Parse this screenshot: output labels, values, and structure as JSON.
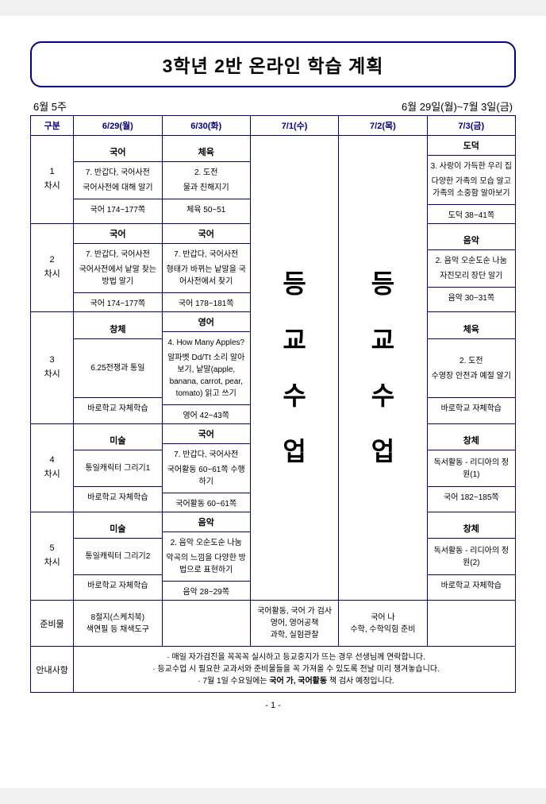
{
  "title": "3학년 2반 온라인 학습 계획",
  "week_label": "6월 5주",
  "date_range": "6월 29일(월)~7월 3일(금)",
  "header": {
    "col_label": "구분",
    "days": [
      "6/29(월)",
      "6/30(화)",
      "7/1(수)",
      "7/2(목)",
      "7/3(금)"
    ]
  },
  "vertical_text": "등교수업",
  "periods": [
    {
      "label_num": "1",
      "label_txt": "차시",
      "mon": {
        "subj": "국어",
        "t1": "7. 반갑다, 국어사전",
        "t2": "국어사전에 대해 알기",
        "pg": "국어 174~177쪽"
      },
      "tue": {
        "subj": "체육",
        "t1": "2. 도전",
        "t2": "물과 친해지기",
        "pg": "체육 50~51"
      },
      "fri": {
        "subj": "도덕",
        "t1": "3. 사랑이 가득한 우리 집",
        "t2": "다양한 가족의 모습 알고 가족의 소중함 알아보기",
        "pg": "도덕 38~41쪽"
      }
    },
    {
      "label_num": "2",
      "label_txt": "차시",
      "mon": {
        "subj": "국어",
        "t1": "7. 반갑다, 국어사전",
        "t2": "국어사전에서 낱말 찾는 방법 알기",
        "pg": "국어 174~177쪽"
      },
      "tue": {
        "subj": "국어",
        "t1": "7. 반갑다, 국어사전",
        "t2": "형태가 바뀌는 낱말을 국어사전에서 찾기",
        "pg": "국어 178~181쪽"
      },
      "fri": {
        "subj": "음악",
        "t1": "2. 음악 오순도순 나눔",
        "t2": "자진모리 장단 알기",
        "pg": "음악 30~31쪽"
      }
    },
    {
      "label_num": "3",
      "label_txt": "차시",
      "mon": {
        "subj": "창체",
        "t1": "",
        "t2": "6.25전쟁과 통일",
        "pg": "바로학교 자체학습"
      },
      "tue": {
        "subj": "영어",
        "t1": "4. How Many Apples?",
        "t2": "알파벳 Dd/Tt 소리 알아보기, 낱말(apple, banana, carrot, pear, tomato) 읽고 쓰기",
        "pg": "영어 42~43쪽"
      },
      "fri": {
        "subj": "체육",
        "t1": "2. 도전",
        "t2": "수영장 안전과 예절 알기",
        "pg": "바로학교 자체학습"
      }
    },
    {
      "label_num": "4",
      "label_txt": "차시",
      "mon": {
        "subj": "미술",
        "t1": "",
        "t2": "통일캐릭터 그리기1",
        "pg": "바로학교 자체학습"
      },
      "tue": {
        "subj": "국어",
        "t1": "7. 반갑다, 국어사전",
        "t2": "국어활동 60~61쪽 수행하기",
        "pg": "국어활동 60~61쪽"
      },
      "fri": {
        "subj": "창체",
        "t1": "",
        "t2": "독서활동 - 리디아의 정원(1)",
        "pg": "국어 182~185쪽"
      }
    },
    {
      "label_num": "5",
      "label_txt": "차시",
      "mon": {
        "subj": "미술",
        "t1": "",
        "t2": "통일캐릭터 그리기2",
        "pg": "바로학교 자체학습"
      },
      "tue": {
        "subj": "음악",
        "t1": "2. 음악 오순도순 나눔",
        "t2": "악곡의 느낌을 다양한 방법으로 표현하기",
        "pg": "음악 28~29쪽"
      },
      "fri": {
        "subj": "창체",
        "t1": "",
        "t2": "독서활동 - 리디아의 정원(2)",
        "pg": "바로학교 자체학습"
      }
    }
  ],
  "prep": {
    "label": "준비물",
    "mon": "8절지(스케치북)\n색연필 등 채색도구",
    "wed": "국어활동, 국어 가 검사\n영어, 영어공책\n과학, 실험관찰",
    "thu": "국어 나\n수학, 수학익힘 준비"
  },
  "notice": {
    "label": "안내사항",
    "items": [
      "매일 자가검진을 꼭꼭꼭 실시하고 등교중지가 뜨는 경우 선생님께 연락합니다.",
      "등교수업 시 필요한 교과서와 준비물들을 꼭 가져올 수 있도록 전날 미리 챙겨놓습니다.",
      "7월 1일 수요일에는 국어 가, 국어활동 책 검사 예정입니다."
    ]
  },
  "page_footer": "- 1 -",
  "colors": {
    "border": "#000080",
    "bg": "#ffffff"
  }
}
